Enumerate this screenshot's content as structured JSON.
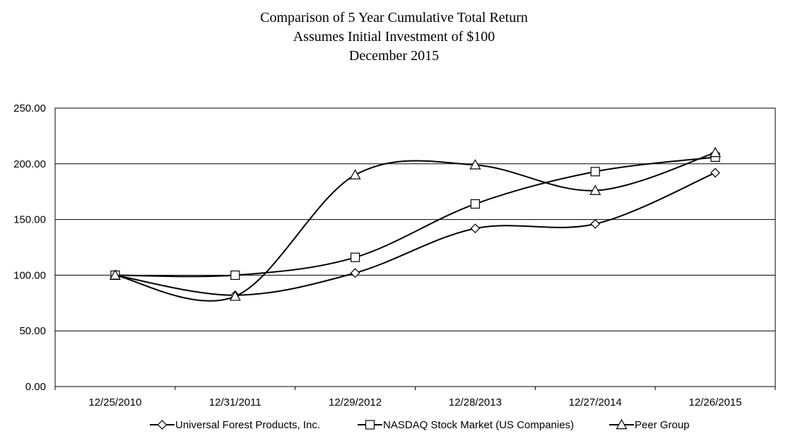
{
  "chart_data": {
    "type": "line",
    "title": "Comparison of 5 Year Cumulative Total Return",
    "subtitle": "Assumes Initial Investment of $100",
    "subtitle2": "December 2015",
    "xlabel": "",
    "ylabel": "",
    "categories": [
      "12/25/2010",
      "12/31/2011",
      "12/29/2012",
      "12/28/2013",
      "12/27/2014",
      "12/26/2015"
    ],
    "ylim": [
      0,
      250
    ],
    "yticks": [
      "0.00",
      "50.00",
      "100.00",
      "150.00",
      "200.00",
      "250.00"
    ],
    "grid": "horizontal",
    "legend_position": "bottom",
    "series": [
      {
        "name": "Universal Forest Products, Inc.",
        "marker": "diamond",
        "values": [
          100,
          82,
          102,
          142,
          146,
          192
        ]
      },
      {
        "name": "NASDAQ Stock Market (US Companies)",
        "marker": "square",
        "values": [
          100,
          100,
          116,
          164,
          193,
          206
        ]
      },
      {
        "name": "Peer Group",
        "marker": "triangle",
        "values": [
          100,
          81,
          190,
          199,
          176,
          210
        ]
      }
    ]
  }
}
